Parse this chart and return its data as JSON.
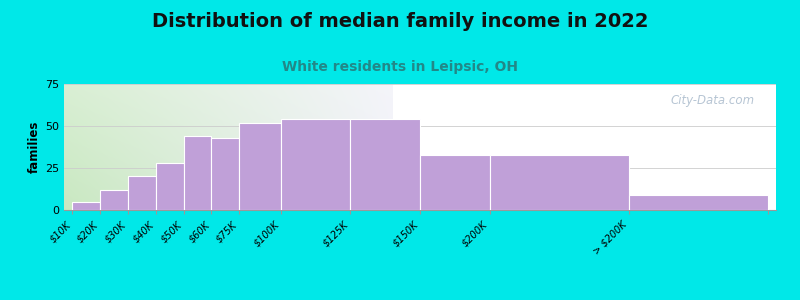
{
  "title": "Distribution of median family income in 2022",
  "subtitle": "White residents in Leipsic, OH",
  "title_fontsize": 14,
  "subtitle_fontsize": 10,
  "ylabel": "families",
  "bin_edges": [
    0,
    10,
    20,
    30,
    40,
    50,
    60,
    75,
    100,
    125,
    150,
    200,
    250
  ],
  "bin_labels": [
    "$10K",
    "$20K",
    "$30K",
    "$40K",
    "$50K",
    "$60K",
    "$75K",
    "$100K",
    "$125K",
    "$150K",
    "$200K",
    "> $200K"
  ],
  "values": [
    5,
    12,
    20,
    28,
    44,
    43,
    52,
    54,
    54,
    33,
    33,
    9
  ],
  "bar_color": "#c0a0d8",
  "bar_edge_color": "#ffffff",
  "background_outer": "#00e8e8",
  "background_inner_left": "#c8e8c0",
  "background_inner_right": "#f0f0f8",
  "grid_color": "#cccccc",
  "ylim": [
    0,
    75
  ],
  "yticks": [
    0,
    25,
    50,
    75
  ],
  "watermark": "City-Data.com",
  "watermark_color": "#aabbcc",
  "title_color": "#111111",
  "subtitle_color": "#228888"
}
